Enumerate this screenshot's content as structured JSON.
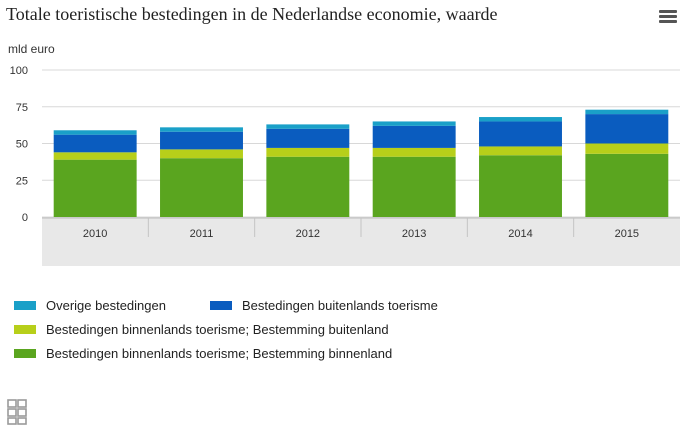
{
  "title": "Totale toeristische bestedingen in de Nederlandse economie, waarde",
  "unit_label": "mld euro",
  "icons": {
    "menu": "hamburger-menu-icon",
    "logo": "cbs-logo-icon"
  },
  "colors": {
    "overige": "#1aa0c8",
    "buitenlands": "#0a5cbf",
    "binnenlands_buitenland": "#b7cf1a",
    "binnenlands_binnenland": "#5aa51f"
  },
  "chart_data": {
    "type": "bar",
    "stacked": true,
    "title": "Totale toeristische bestedingen in de Nederlandse economie, waarde",
    "ylabel": "mld euro",
    "xlabel": "",
    "ylim": [
      0,
      100
    ],
    "yticks": [
      0,
      25,
      50,
      75,
      100
    ],
    "grid": true,
    "legend_position": "bottom",
    "categories": [
      "2010",
      "2011",
      "2012",
      "2013",
      "2014",
      "2015"
    ],
    "series": [
      {
        "name": "Bestedingen binnenlands toerisme; Bestemming binnenland",
        "color": "#5aa51f",
        "values": [
          39,
          40,
          41,
          41,
          42,
          43
        ]
      },
      {
        "name": "Bestedingen binnenlands toerisme; Bestemming buitenland",
        "color": "#b7cf1a",
        "values": [
          5,
          6,
          6,
          6,
          6,
          7
        ]
      },
      {
        "name": "Bestedingen buitenlands toerisme",
        "color": "#0a5cbf",
        "values": [
          12,
          12,
          13,
          15,
          17,
          20
        ]
      },
      {
        "name": "Overige bestedingen",
        "color": "#1aa0c8",
        "values": [
          3,
          3,
          3,
          3,
          3,
          3
        ]
      }
    ]
  },
  "legend": [
    {
      "label": "Overige bestedingen",
      "color": "#1aa0c8"
    },
    {
      "label": "Bestedingen buitenlands toerisme",
      "color": "#0a5cbf"
    },
    {
      "label": "Bestedingen binnenlands toerisme; Bestemming buitenland",
      "color": "#b7cf1a"
    },
    {
      "label": "Bestedingen binnenlands toerisme; Bestemming binnenland",
      "color": "#5aa51f"
    }
  ]
}
